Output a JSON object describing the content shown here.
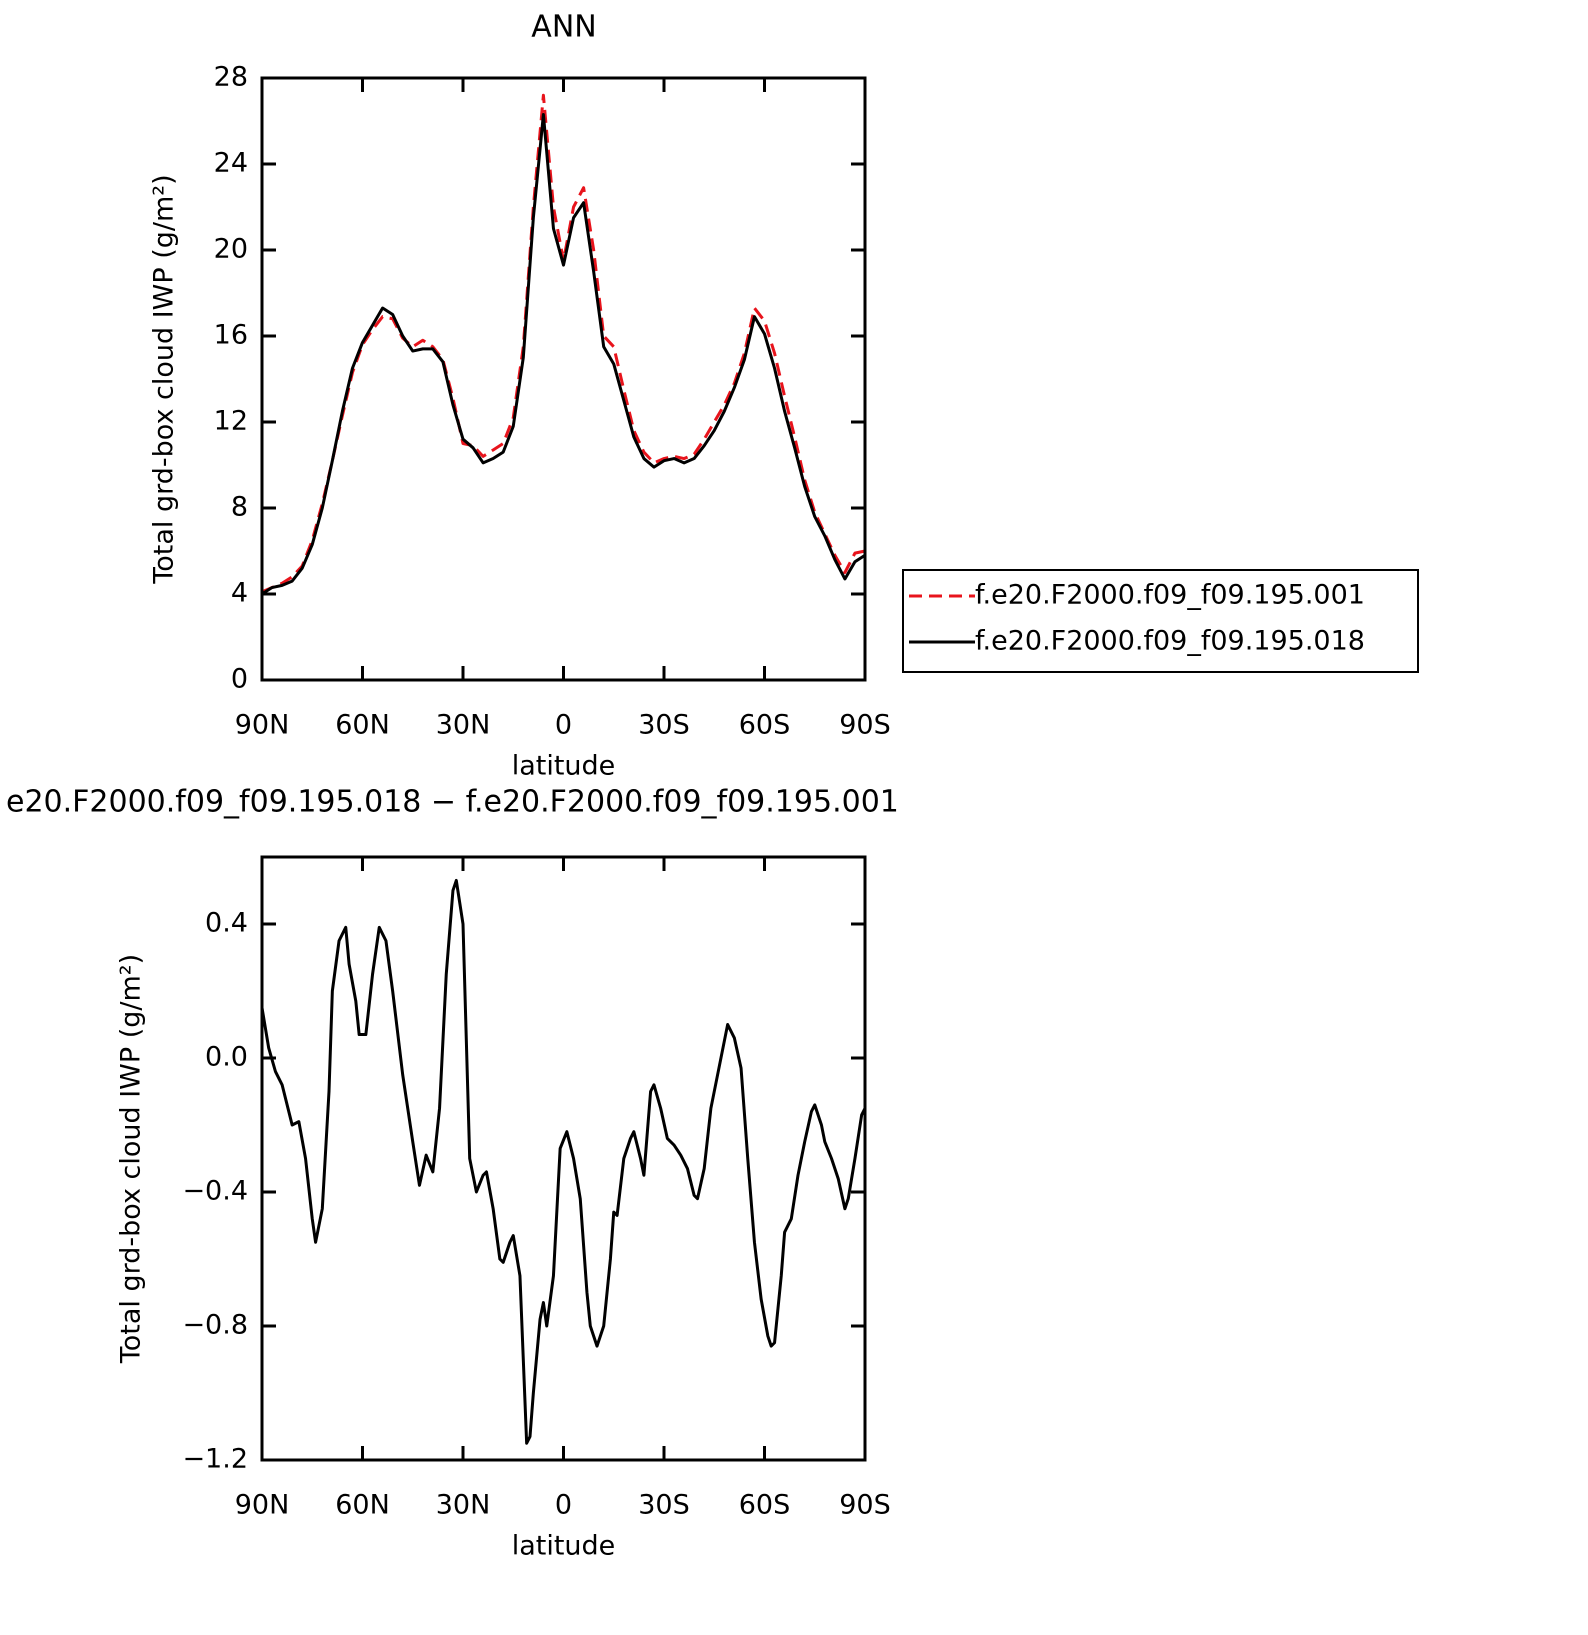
{
  "chart_data": [
    {
      "type": "line",
      "title": "ANN",
      "xlabel": "latitude",
      "ylabel": "Total grd-box cloud IWP (g/m²)",
      "x": [
        90,
        87,
        84,
        81,
        78,
        75,
        72,
        69,
        66,
        63,
        60,
        57,
        54,
        51,
        48,
        45,
        42,
        39,
        36,
        33,
        30,
        27,
        24,
        21,
        18,
        15,
        12,
        9,
        6,
        3,
        0,
        -3,
        -6,
        -9,
        -12,
        -15,
        -18,
        -21,
        -24,
        -27,
        -30,
        -33,
        -36,
        -39,
        -42,
        -45,
        -48,
        -51,
        -54,
        -57,
        -60,
        -63,
        -66,
        -69,
        -72,
        -75,
        -78,
        -81,
        -84,
        -87,
        -90
      ],
      "xlim": [
        90,
        -90
      ],
      "xticks": [
        {
          "value": 90,
          "label": "90N"
        },
        {
          "value": 60,
          "label": "60N"
        },
        {
          "value": 30,
          "label": "30N"
        },
        0,
        {
          "value": -30,
          "label": "30S"
        },
        {
          "value": -60,
          "label": "60S"
        },
        {
          "value": -90,
          "label": "90S"
        }
      ],
      "ylim": [
        0,
        28
      ],
      "yticks": [
        0,
        4,
        8,
        12,
        16,
        20,
        24,
        28
      ],
      "legend": "right",
      "series": [
        {
          "name": "f.e20.F2000.f09_f09.195.001",
          "color": "#e8141c",
          "dashed": true,
          "values": [
            4.1,
            4.3,
            4.5,
            4.8,
            5.3,
            6.5,
            8.2,
            10.2,
            12.3,
            14.3,
            15.6,
            16.3,
            16.9,
            16.8,
            15.9,
            15.5,
            15.8,
            15.5,
            14.9,
            13.1,
            11.0,
            10.9,
            10.4,
            10.7,
            11.0,
            12.2,
            15.5,
            22.0,
            27.2,
            22.0,
            19.5,
            22.0,
            22.9,
            20.0,
            16.0,
            15.5,
            13.5,
            11.6,
            10.6,
            10.1,
            10.3,
            10.4,
            10.3,
            10.5,
            11.2,
            12.0,
            12.8,
            13.8,
            15.2,
            17.3,
            16.7,
            15.2,
            13.2,
            11.3,
            9.3,
            7.8,
            6.8,
            5.8,
            5.0,
            5.9,
            6.0
          ]
        },
        {
          "name": "f.e20.F2000.f09_f09.195.018",
          "color": "#000000",
          "dashed": false,
          "values": [
            4.0,
            4.3,
            4.4,
            4.6,
            5.2,
            6.3,
            8.0,
            10.2,
            12.5,
            14.5,
            15.7,
            16.5,
            17.3,
            17.0,
            16.0,
            15.3,
            15.4,
            15.4,
            14.8,
            12.8,
            11.2,
            10.8,
            10.1,
            10.3,
            10.6,
            11.8,
            15.0,
            21.5,
            26.3,
            21.0,
            19.3,
            21.5,
            22.2,
            19.0,
            15.5,
            14.7,
            13.0,
            11.3,
            10.3,
            9.9,
            10.2,
            10.3,
            10.1,
            10.3,
            10.9,
            11.6,
            12.5,
            13.6,
            14.9,
            16.9,
            16.1,
            14.5,
            12.5,
            10.8,
            9.0,
            7.6,
            6.7,
            5.6,
            4.7,
            5.5,
            5.8
          ]
        }
      ]
    },
    {
      "type": "line",
      "title": "e20.F2000.f09_f09.195.018 − f.e20.F2000.f09_f09.195.001",
      "xlabel": "latitude",
      "ylabel": "Total grd-box cloud IWP (g/m²)",
      "x": [
        90,
        88,
        86,
        84,
        81,
        79,
        77,
        75,
        74,
        72,
        70,
        69,
        67,
        65,
        64,
        62,
        61,
        59,
        57,
        55,
        53,
        51,
        48,
        45,
        43,
        41,
        39,
        37,
        35,
        33,
        32,
        30,
        28,
        26,
        24,
        23,
        21,
        19,
        18,
        16,
        15,
        13,
        11,
        10,
        9,
        7,
        6,
        5,
        3,
        1,
        -1,
        -3,
        -5,
        -7,
        -8,
        -10,
        -12,
        -14,
        -15,
        -16,
        -18,
        -20,
        -21,
        -23,
        -24,
        -26,
        -27,
        -29,
        -31,
        -33,
        -35,
        -37,
        -39,
        -40,
        -42,
        -44,
        -46,
        -48,
        -49,
        -51,
        -53,
        -55,
        -57,
        -59,
        -61,
        -62,
        -63,
        -65,
        -66,
        -68,
        -70,
        -72,
        -74,
        -75,
        -77,
        -78,
        -80,
        -82,
        -84,
        -85,
        -86,
        -87,
        -89,
        -90
      ],
      "xlim": [
        90,
        -90
      ],
      "xticks": [
        {
          "value": 90,
          "label": "90N"
        },
        {
          "value": 60,
          "label": "60N"
        },
        {
          "value": 30,
          "label": "30N"
        },
        0,
        {
          "value": -30,
          "label": "30S"
        },
        {
          "value": -60,
          "label": "60S"
        },
        {
          "value": -90,
          "label": "90S"
        }
      ],
      "ylim": [
        -1.2,
        0.6
      ],
      "yticks": [
        {
          "value": -1.2,
          "label": "−1.2"
        },
        {
          "value": -0.8,
          "label": "−0.8"
        },
        {
          "value": -0.4,
          "label": "−0.4"
        },
        {
          "value": 0,
          "label": "0.0"
        },
        0.4
      ],
      "series": [
        {
          "color": "#000000",
          "dashed": false,
          "values": [
            0.15,
            0.03,
            -0.04,
            -0.08,
            -0.2,
            -0.19,
            -0.3,
            -0.48,
            -0.55,
            -0.45,
            -0.1,
            0.2,
            0.35,
            0.39,
            0.28,
            0.17,
            0.07,
            0.07,
            0.25,
            0.39,
            0.35,
            0.2,
            -0.05,
            -0.25,
            -0.38,
            -0.29,
            -0.34,
            -0.15,
            0.25,
            0.5,
            0.53,
            0.4,
            -0.3,
            -0.4,
            -0.35,
            -0.34,
            -0.45,
            -0.6,
            -0.61,
            -0.55,
            -0.53,
            -0.65,
            -1.15,
            -1.13,
            -1.0,
            -0.78,
            -0.73,
            -0.8,
            -0.65,
            -0.27,
            -0.22,
            -0.3,
            -0.42,
            -0.7,
            -0.8,
            -0.86,
            -0.8,
            -0.6,
            -0.46,
            -0.47,
            -0.3,
            -0.24,
            -0.22,
            -0.3,
            -0.35,
            -0.1,
            -0.08,
            -0.15,
            -0.24,
            -0.26,
            -0.29,
            -0.33,
            -0.41,
            -0.42,
            -0.33,
            -0.15,
            -0.05,
            0.05,
            0.1,
            0.06,
            -0.03,
            -0.3,
            -0.55,
            -0.72,
            -0.83,
            -0.86,
            -0.85,
            -0.65,
            -0.52,
            -0.48,
            -0.35,
            -0.25,
            -0.16,
            -0.14,
            -0.2,
            -0.25,
            -0.3,
            -0.36,
            -0.45,
            -0.42,
            -0.36,
            -0.3,
            -0.17,
            -0.15
          ]
        }
      ]
    }
  ]
}
